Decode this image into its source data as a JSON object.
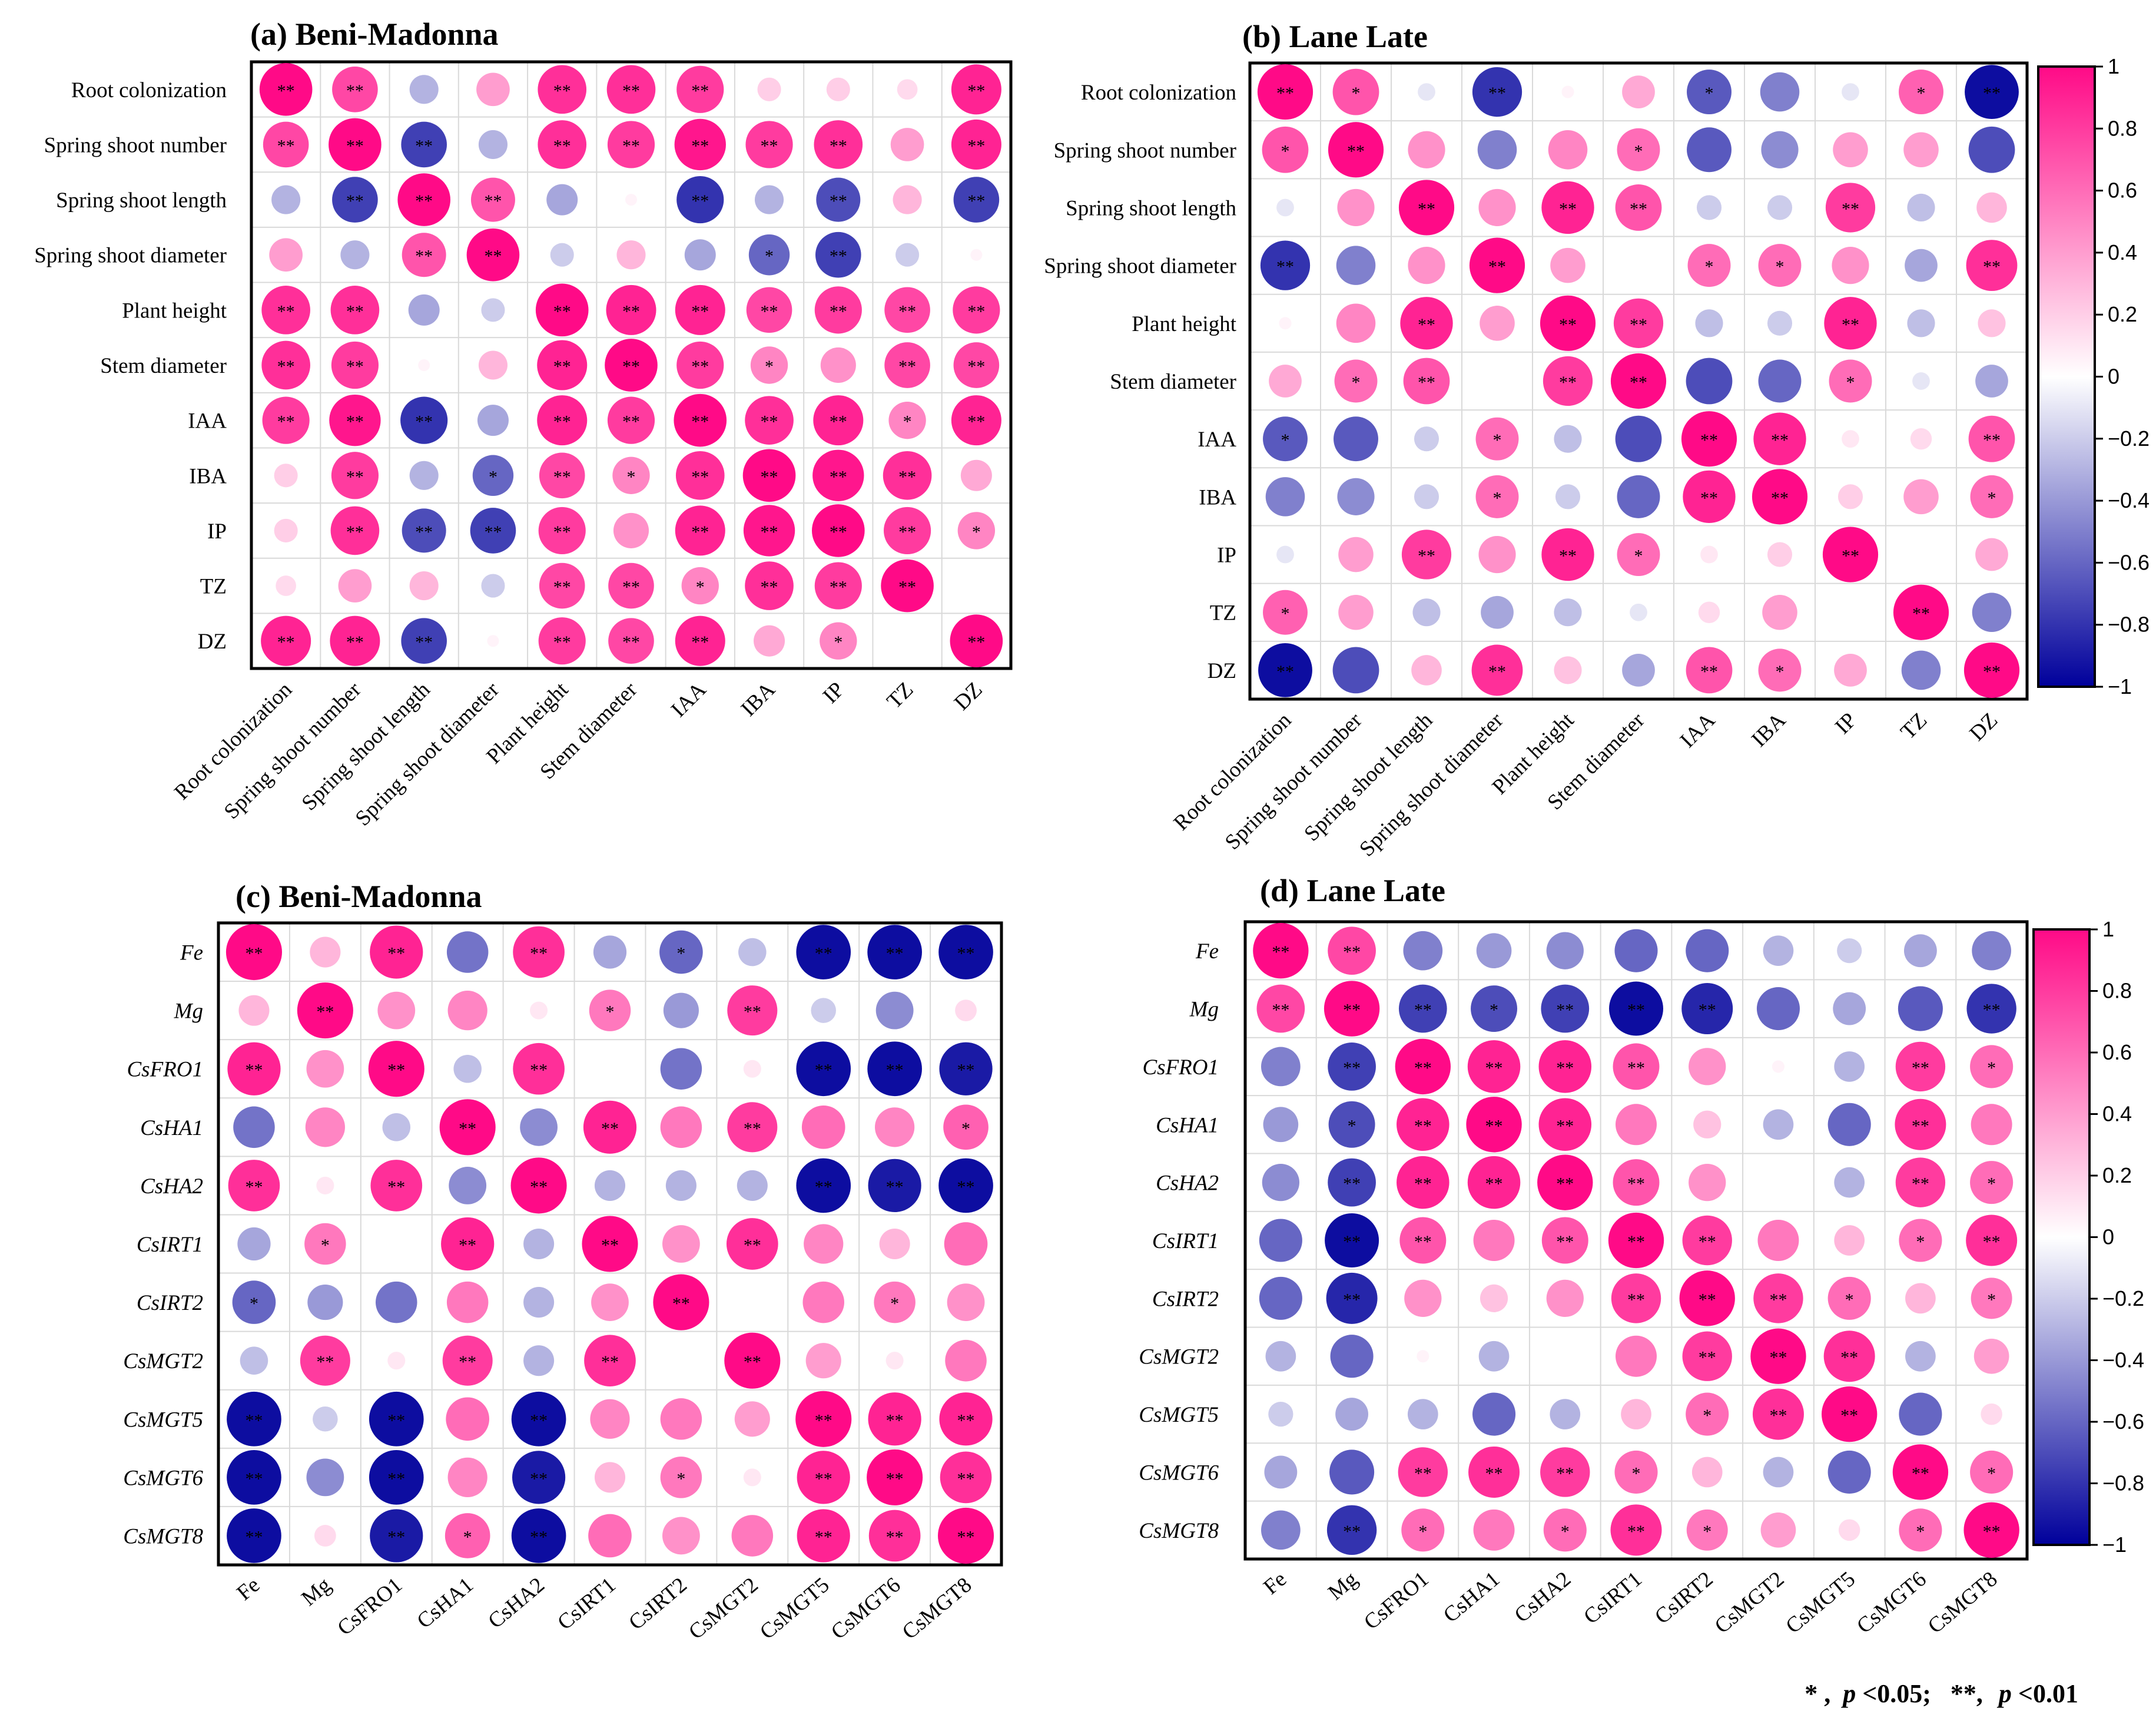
{
  "chart_data": [
    {
      "type": "heatmap",
      "title": "(a) Beni-Madonna",
      "rows": [
        "Root colonization",
        "Spring shoot number",
        "Spring shoot length",
        "Spring shoot diameter",
        "Plant height",
        "Stem diameter",
        "IAA",
        "IBA",
        "IP",
        "TZ",
        "DZ"
      ],
      "cols": [
        "Root colonization",
        "Spring shoot number",
        "Spring shoot length",
        "Spring shoot diameter",
        "Plant height",
        "Stem diameter",
        "IAA",
        "IBA",
        "IP",
        "TZ",
        "DZ"
      ],
      "italic_rows": false,
      "italic_cols": false,
      "col_label_rotation": -45,
      "values": [
        [
          1,
          0.75,
          -0.3,
          0.4,
          0.85,
          0.85,
          0.8,
          0.2,
          0.2,
          0.15,
          0.9
        ],
        [
          0.75,
          1,
          -0.75,
          -0.3,
          0.85,
          0.8,
          0.95,
          0.8,
          0.85,
          0.4,
          0.9
        ],
        [
          -0.3,
          -0.75,
          1,
          0.7,
          -0.35,
          0.05,
          -0.8,
          -0.3,
          -0.7,
          0.3,
          -0.75
        ],
        [
          0.4,
          -0.3,
          0.7,
          1,
          -0.2,
          0.3,
          -0.35,
          -0.6,
          -0.75,
          -0.2,
          0.05
        ],
        [
          0.85,
          0.85,
          -0.35,
          -0.2,
          1,
          0.9,
          0.9,
          0.75,
          0.8,
          0.75,
          0.8
        ],
        [
          0.85,
          0.8,
          0.05,
          0.3,
          0.9,
          1,
          0.8,
          0.5,
          0.45,
          0.75,
          0.75
        ],
        [
          0.8,
          0.95,
          -0.8,
          -0.35,
          0.9,
          0.8,
          1,
          0.85,
          0.9,
          0.5,
          0.9
        ],
        [
          0.2,
          0.8,
          -0.3,
          -0.6,
          0.75,
          0.5,
          0.85,
          1,
          0.95,
          0.85,
          0.35
        ],
        [
          0.2,
          0.85,
          -0.7,
          -0.75,
          0.8,
          0.45,
          0.9,
          0.95,
          1,
          0.8,
          0.5
        ],
        [
          0.15,
          0.4,
          0.3,
          -0.2,
          0.75,
          0.75,
          0.5,
          0.85,
          0.8,
          1,
          0.0
        ],
        [
          0.9,
          0.9,
          -0.75,
          0.05,
          0.8,
          0.75,
          0.9,
          0.35,
          0.5,
          0.0,
          1
        ]
      ],
      "significance": [
        [
          "**",
          "**",
          "",
          "",
          "**",
          "**",
          "**",
          "",
          "",
          "",
          "**"
        ],
        [
          "**",
          "**",
          "**",
          "",
          "**",
          "**",
          "**",
          "**",
          "**",
          "",
          "**"
        ],
        [
          "",
          "**",
          "**",
          "**",
          "",
          "",
          "**",
          "",
          "**",
          "",
          "**"
        ],
        [
          "",
          "",
          "**",
          "**",
          "",
          "",
          "",
          "*",
          "**",
          "",
          ""
        ],
        [
          "**",
          "**",
          "",
          "",
          "**",
          "**",
          "**",
          "**",
          "**",
          "**",
          "**"
        ],
        [
          "**",
          "**",
          "",
          "",
          "**",
          "**",
          "**",
          "*",
          "",
          "**",
          "**"
        ],
        [
          "**",
          "**",
          "**",
          "",
          "**",
          "**",
          "**",
          "**",
          "**",
          "*",
          "**"
        ],
        [
          "",
          "**",
          "",
          "*",
          "**",
          "*",
          "**",
          "**",
          "**",
          "**",
          ""
        ],
        [
          "",
          "**",
          "**",
          "**",
          "**",
          "",
          "**",
          "**",
          "**",
          "**",
          "*"
        ],
        [
          "",
          "",
          "",
          "",
          "**",
          "**",
          "*",
          "**",
          "**",
          "**",
          ""
        ],
        [
          "**",
          "**",
          "**",
          "",
          "**",
          "**",
          "**",
          "",
          "*",
          "",
          "**"
        ]
      ]
    },
    {
      "type": "heatmap",
      "title": "(b) Lane Late",
      "rows": [
        "Root colonization",
        "Spring shoot number",
        "Spring shoot length",
        "Spring shoot diameter",
        "Plant height",
        "Stem diameter",
        "IAA",
        "IBA",
        "IP",
        "TZ",
        "DZ"
      ],
      "cols": [
        "Root colonization",
        "Spring shoot number",
        "Spring shoot length",
        "Spring shoot diameter",
        "Plant height",
        "Stem diameter",
        "IAA",
        "IBA",
        "IP",
        "TZ",
        "DZ"
      ],
      "italic_rows": false,
      "italic_cols": false,
      "col_label_rotation": -45,
      "values": [
        [
          1,
          0.7,
          -0.1,
          -0.8,
          0.05,
          0.35,
          -0.65,
          -0.5,
          -0.1,
          0.65,
          -0.95
        ],
        [
          0.7,
          1,
          0.45,
          -0.5,
          0.5,
          0.6,
          -0.65,
          -0.45,
          0.4,
          0.4,
          -0.7
        ],
        [
          -0.1,
          0.45,
          1,
          0.45,
          0.9,
          0.7,
          -0.2,
          -0.2,
          0.8,
          -0.25,
          0.3
        ],
        [
          -0.8,
          -0.5,
          0.45,
          1,
          0.4,
          0.0,
          0.6,
          0.6,
          0.45,
          -0.35,
          0.85
        ],
        [
          0.05,
          0.5,
          0.9,
          0.4,
          1,
          0.8,
          -0.25,
          -0.2,
          0.9,
          -0.25,
          0.25
        ],
        [
          0.35,
          0.6,
          0.7,
          0.0,
          0.8,
          1,
          -0.7,
          -0.6,
          0.6,
          -0.1,
          -0.35
        ],
        [
          -0.65,
          -0.65,
          -0.2,
          0.6,
          -0.25,
          -0.7,
          1,
          0.9,
          0.1,
          0.15,
          0.7
        ],
        [
          -0.5,
          -0.45,
          -0.2,
          0.6,
          -0.2,
          -0.6,
          0.9,
          1,
          0.2,
          0.4,
          0.6
        ],
        [
          -0.1,
          0.4,
          0.8,
          0.45,
          0.9,
          0.6,
          0.1,
          0.2,
          1,
          0.0,
          0.35
        ],
        [
          0.65,
          0.4,
          -0.25,
          -0.35,
          -0.25,
          -0.1,
          0.15,
          0.4,
          0.0,
          1,
          -0.5
        ],
        [
          -0.95,
          -0.7,
          0.3,
          0.85,
          0.25,
          -0.35,
          0.7,
          0.6,
          0.35,
          -0.5,
          1
        ]
      ],
      "significance": [
        [
          "**",
          "*",
          "",
          "**",
          "",
          "",
          "*",
          "",
          "",
          "*",
          "**"
        ],
        [
          "*",
          "**",
          "",
          "",
          "",
          "*",
          "",
          "",
          "",
          "",
          ""
        ],
        [
          "",
          "",
          "**",
          "",
          "**",
          "**",
          "",
          "",
          "**",
          "",
          ""
        ],
        [
          "**",
          "",
          "",
          "**",
          "",
          "",
          "*",
          "*",
          "",
          "",
          "**"
        ],
        [
          "",
          "",
          "**",
          "",
          "**",
          "**",
          "",
          "",
          "**",
          "",
          ""
        ],
        [
          "",
          "*",
          "**",
          "",
          "**",
          "**",
          "",
          "",
          "*",
          "",
          ""
        ],
        [
          "*",
          "",
          "",
          "*",
          "",
          "",
          "**",
          "**",
          "",
          "",
          "**"
        ],
        [
          "",
          "",
          "",
          "*",
          "",
          "",
          "**",
          "**",
          "",
          "",
          "*"
        ],
        [
          "",
          "",
          "**",
          "",
          "**",
          "*",
          "",
          "",
          "**",
          "",
          ""
        ],
        [
          "*",
          "",
          "",
          "",
          "",
          "",
          "",
          "",
          "",
          "**",
          ""
        ],
        [
          "**",
          "",
          "",
          "**",
          "",
          "",
          "**",
          "*",
          "",
          "",
          "**"
        ]
      ]
    },
    {
      "type": "heatmap",
      "title": "(c) Beni-Madonna",
      "rows": [
        "Fe",
        "Mg",
        "CsFRO1",
        "CsHA1",
        "CsHA2",
        "CsIRT1",
        "CsIRT2",
        "CsMGT2",
        "CsMGT5",
        "CsMGT6",
        "CsMGT8"
      ],
      "cols": [
        "Fe",
        "Mg",
        "CsFRO1",
        "CsHA1",
        "CsHA2",
        "CsIRT1",
        "CsIRT2",
        "CsMGT2",
        "CsMGT5",
        "CsMGT6",
        "CsMGT8"
      ],
      "italic_rows": true,
      "italic_cols": false,
      "col_label_rotation": -40,
      "values": [
        [
          1,
          0.3,
          0.9,
          -0.55,
          0.85,
          -0.35,
          -0.6,
          -0.25,
          -0.95,
          -0.95,
          -0.95
        ],
        [
          0.3,
          1,
          0.45,
          0.5,
          0.1,
          0.55,
          -0.4,
          0.8,
          -0.2,
          -0.45,
          0.15
        ],
        [
          0.9,
          0.45,
          1,
          -0.25,
          0.85,
          0.0,
          -0.55,
          0.1,
          -0.95,
          -0.95,
          -0.9
        ],
        [
          -0.55,
          0.5,
          -0.25,
          1,
          -0.45,
          0.9,
          0.55,
          0.8,
          0.6,
          0.5,
          0.65
        ],
        [
          0.85,
          0.1,
          0.85,
          -0.45,
          1,
          -0.3,
          -0.3,
          -0.3,
          -0.95,
          -0.9,
          -0.95
        ],
        [
          -0.35,
          0.55,
          0.0,
          0.9,
          -0.3,
          1,
          0.45,
          0.85,
          0.5,
          0.3,
          0.6
        ],
        [
          -0.6,
          -0.4,
          -0.55,
          0.55,
          -0.3,
          0.45,
          1,
          0.0,
          0.55,
          0.55,
          0.45
        ],
        [
          -0.25,
          0.8,
          0.1,
          0.8,
          -0.3,
          0.85,
          0.0,
          1,
          0.4,
          0.1,
          0.55
        ],
        [
          -0.95,
          -0.2,
          -0.95,
          0.6,
          -0.95,
          0.5,
          0.55,
          0.4,
          1,
          0.9,
          0.9
        ],
        [
          -0.95,
          -0.45,
          -0.95,
          0.5,
          -0.9,
          0.3,
          0.55,
          0.1,
          0.9,
          1,
          0.85
        ],
        [
          -0.95,
          0.15,
          -0.9,
          0.65,
          -0.95,
          0.6,
          0.45,
          0.55,
          0.9,
          0.85,
          1
        ]
      ],
      "significance": [
        [
          "**",
          "",
          "**",
          "",
          "**",
          "",
          "*",
          "",
          "**",
          "**",
          "**"
        ],
        [
          "",
          "**",
          "",
          "",
          "",
          "*",
          "",
          "**",
          "",
          "",
          ""
        ],
        [
          "**",
          "",
          "**",
          "",
          "**",
          "",
          "",
          "",
          "**",
          "**",
          "**"
        ],
        [
          "",
          "",
          "",
          "**",
          "",
          "**",
          "",
          "**",
          "",
          "",
          "*"
        ],
        [
          "**",
          "",
          "**",
          "",
          "**",
          "",
          "",
          "",
          "**",
          "**",
          "**"
        ],
        [
          "",
          "*",
          "",
          "**",
          "",
          "**",
          "",
          "**",
          "",
          "",
          ""
        ],
        [
          "*",
          "",
          "",
          "",
          "",
          "",
          "**",
          "",
          "",
          "*",
          ""
        ],
        [
          "",
          "**",
          "",
          "**",
          "",
          "**",
          "",
          "**",
          "",
          "",
          ""
        ],
        [
          "**",
          "",
          "**",
          "",
          "**",
          "",
          "",
          "",
          "**",
          "**",
          "**"
        ],
        [
          "**",
          "",
          "**",
          "",
          "**",
          "",
          "*",
          "",
          "**",
          "**",
          "**"
        ],
        [
          "**",
          "",
          "**",
          "*",
          "**",
          "",
          "",
          "",
          "**",
          "**",
          "**"
        ]
      ]
    },
    {
      "type": "heatmap",
      "title": "(d) Lane Late",
      "rows": [
        "Fe",
        "Mg",
        "CsFRO1",
        "CsHA1",
        "CsHA2",
        "CsIRT1",
        "CsIRT2",
        "CsMGT2",
        "CsMGT5",
        "CsMGT6",
        "CsMGT8"
      ],
      "cols": [
        "Fe",
        "Mg",
        "CsFRO1",
        "CsHA1",
        "CsHA2",
        "CsIRT1",
        "CsIRT2",
        "CsMGT2",
        "CsMGT5",
        "CsMGT6",
        "CsMGT8"
      ],
      "italic_rows": true,
      "italic_cols": false,
      "col_label_rotation": -40,
      "values": [
        [
          1,
          0.75,
          -0.5,
          -0.4,
          -0.45,
          -0.6,
          -0.6,
          -0.3,
          -0.2,
          -0.35,
          -0.5
        ],
        [
          0.75,
          1,
          -0.75,
          -0.7,
          -0.75,
          -0.95,
          -0.85,
          -0.6,
          -0.35,
          -0.65,
          -0.8
        ],
        [
          -0.5,
          -0.75,
          1,
          0.9,
          0.9,
          0.7,
          0.45,
          0.05,
          -0.3,
          0.8,
          0.6
        ],
        [
          -0.4,
          -0.7,
          0.9,
          1,
          0.9,
          0.55,
          0.25,
          -0.3,
          -0.6,
          0.85,
          0.55
        ],
        [
          -0.45,
          -0.75,
          0.9,
          0.9,
          1,
          0.7,
          0.45,
          0.0,
          -0.3,
          0.8,
          0.6
        ],
        [
          -0.6,
          -0.95,
          0.7,
          0.55,
          0.7,
          1,
          0.8,
          0.55,
          0.3,
          0.6,
          0.85
        ],
        [
          -0.6,
          -0.85,
          0.45,
          0.25,
          0.45,
          0.8,
          1,
          0.8,
          0.6,
          0.3,
          0.55
        ],
        [
          -0.3,
          -0.6,
          0.05,
          -0.3,
          0.0,
          0.55,
          0.8,
          1,
          0.85,
          -0.3,
          0.4
        ],
        [
          -0.2,
          -0.35,
          -0.3,
          -0.6,
          -0.3,
          0.3,
          0.6,
          0.85,
          1,
          -0.6,
          0.15
        ],
        [
          -0.35,
          -0.65,
          0.8,
          0.85,
          0.8,
          0.6,
          0.3,
          -0.3,
          -0.6,
          1,
          0.6
        ],
        [
          -0.5,
          -0.8,
          0.6,
          0.55,
          0.6,
          0.85,
          0.55,
          0.4,
          0.15,
          0.6,
          1
        ]
      ],
      "significance": [
        [
          "**",
          "**",
          "",
          "",
          "",
          "",
          "",
          "",
          "",
          "",
          ""
        ],
        [
          "**",
          "**",
          "**",
          "*",
          "**",
          "**",
          "**",
          "",
          "",
          "",
          "**"
        ],
        [
          "",
          "**",
          "**",
          "**",
          "**",
          "**",
          "",
          "",
          "",
          "**",
          "*"
        ],
        [
          "",
          "*",
          "**",
          "**",
          "**",
          "",
          "",
          "",
          "",
          "**",
          ""
        ],
        [
          "",
          "**",
          "**",
          "**",
          "**",
          "**",
          "",
          "",
          "",
          "**",
          "*"
        ],
        [
          "",
          "**",
          "**",
          "",
          "**",
          "**",
          "**",
          "",
          "",
          "*",
          "**"
        ],
        [
          "",
          "**",
          "",
          "",
          "",
          "**",
          "**",
          "**",
          "*",
          "",
          "*"
        ],
        [
          "",
          "",
          "",
          "",
          "",
          "",
          "**",
          "**",
          "**",
          "",
          ""
        ],
        [
          "",
          "",
          "",
          "",
          "",
          "",
          "*",
          "**",
          "**",
          "",
          ""
        ],
        [
          "",
          "",
          "**",
          "**",
          "**",
          "*",
          "",
          "",
          "",
          "**",
          "*"
        ],
        [
          "",
          "**",
          "*",
          "",
          "*",
          "**",
          "*",
          "",
          "",
          "*",
          "**"
        ]
      ]
    }
  ],
  "colorbar": {
    "ticks": [
      "1",
      "0.8",
      "0.6",
      "0.4",
      "0.2",
      "0",
      "−0.2",
      "−0.4",
      "−0.6",
      "−0.8",
      "−1"
    ],
    "tick_values": [
      1,
      0.8,
      0.6,
      0.4,
      0.2,
      0,
      -0.2,
      -0.4,
      -0.6,
      -0.8,
      -1
    ],
    "color_positive": "#ff0a87",
    "color_zero": "#ffffff",
    "color_negative": "#00009b"
  },
  "footnote": {
    "sig1_symbol": "* ,",
    "p_label": "p",
    "sig1_threshold": "<0.05;",
    "sig2_symbol": "**,",
    "sig2_threshold": "<0.01"
  }
}
